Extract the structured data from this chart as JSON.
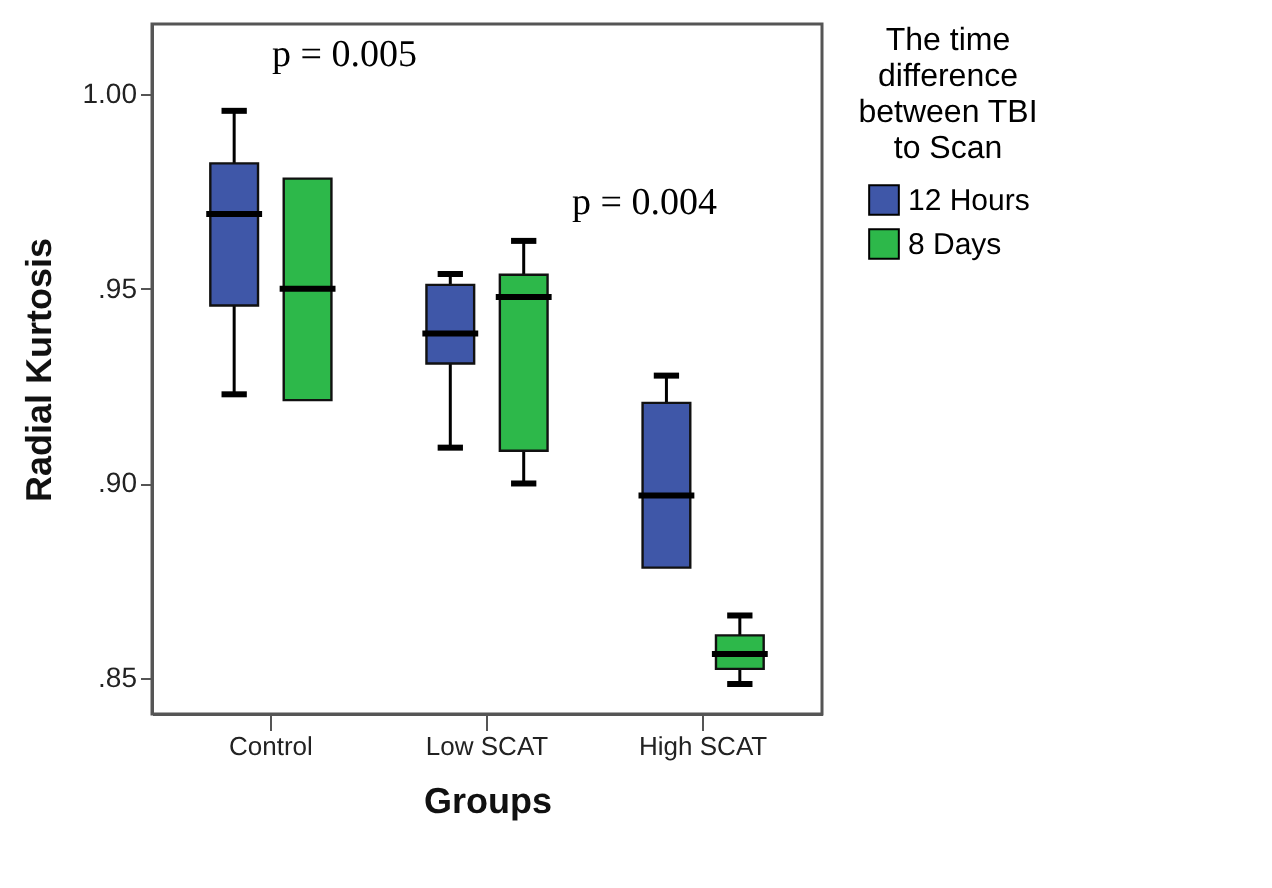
{
  "chart_data": {
    "type": "box",
    "xlabel": "Groups",
    "ylabel": "Radial Kurtosis",
    "legend_title": "The time difference between TBI to Scan",
    "legend": "right",
    "categories": [
      "Control",
      "Low SCAT",
      "High SCAT"
    ],
    "ylim": [
      0.8408,
      1.018
    ],
    "yticks": [
      {
        "value": 0.85,
        "label": ".85"
      },
      {
        "value": 0.9,
        "label": ".90"
      },
      {
        "value": 0.95,
        "label": ".95"
      },
      {
        "value": 1.0,
        "label": "1.00"
      }
    ],
    "series": [
      {
        "name": "12 Hours",
        "color": "#3f57a8",
        "boxes": [
          {
            "low": 0.9229,
            "q1": 0.9457,
            "median": 0.9692,
            "q3": 0.9822,
            "high": 0.9957
          },
          {
            "low": 0.9092,
            "q1": 0.9308,
            "median": 0.9385,
            "q3": 0.951,
            "high": 0.9538
          },
          {
            "low": 0.8784,
            "q1": 0.8784,
            "median": 0.8969,
            "q3": 0.9207,
            "high": 0.9277
          }
        ]
      },
      {
        "name": "8 Days",
        "color": "#2db84a",
        "boxes": [
          {
            "low": 0.9214,
            "q1": 0.9214,
            "median": 0.95,
            "q3": 0.9783,
            "high": 0.9783
          },
          {
            "low": 0.9,
            "q1": 0.9084,
            "median": 0.9479,
            "q3": 0.9536,
            "high": 0.9623
          },
          {
            "low": 0.8485,
            "q1": 0.8524,
            "median": 0.8562,
            "q3": 0.861,
            "high": 0.8661
          }
        ]
      }
    ],
    "annotations": [
      "p = 0.005",
      "p = 0.004"
    ]
  }
}
